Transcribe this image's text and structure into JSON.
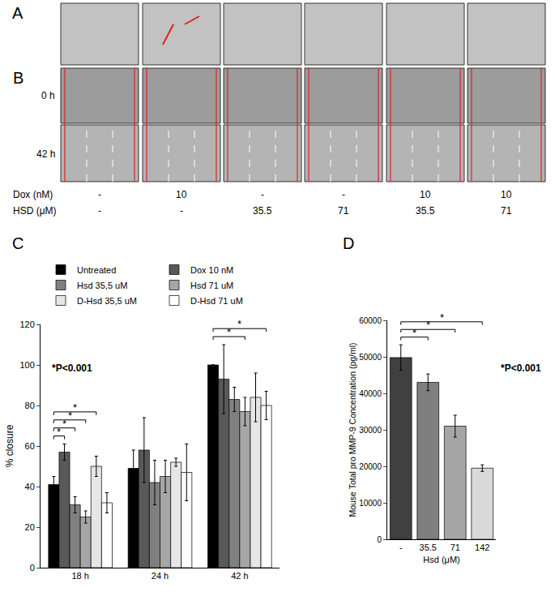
{
  "images": {
    "label_A": "A",
    "label_B": "B",
    "rows": [
      "0 h",
      "42 h"
    ],
    "conditions": [
      {
        "name": "Dox (nM)",
        "values": [
          "-",
          "10",
          "-",
          "-",
          "10",
          "10"
        ]
      },
      {
        "name": "HSD (μM)",
        "values": [
          "-",
          "-",
          "35.5",
          "71",
          "35.5",
          "71"
        ]
      }
    ]
  },
  "chart_data": [
    {
      "type": "bar",
      "panel_label": "C",
      "categories": [
        "18 h",
        "24 h",
        "42 h"
      ],
      "series": [
        {
          "name": "Untreated",
          "color": "#000000",
          "values": [
            41,
            49,
            100
          ],
          "errors": [
            4,
            9,
            0
          ]
        },
        {
          "name": "Dox 10 nM",
          "color": "#595959",
          "values": [
            57,
            58,
            93
          ],
          "errors": [
            4,
            16,
            17
          ]
        },
        {
          "name": "Hsd 35,5 uM",
          "color": "#808080",
          "values": [
            31,
            42,
            83
          ],
          "errors": [
            4,
            11,
            6
          ]
        },
        {
          "name": "Hsd 71 uM",
          "color": "#a6a6a6",
          "values": [
            25,
            45,
            77
          ],
          "errors": [
            3,
            8,
            7
          ]
        },
        {
          "name": "D-Hsd 35,5 uM",
          "color": "#e6e6e6",
          "values": [
            50,
            52,
            84
          ],
          "errors": [
            5,
            2,
            12
          ]
        },
        {
          "name": "D-Hsd 71 uM",
          "color": "#ffffff",
          "values": [
            32,
            47,
            80
          ],
          "errors": [
            5,
            14,
            7
          ]
        }
      ],
      "ylabel": "% closure",
      "ylim": [
        0,
        120
      ],
      "yticks": [
        0,
        20,
        40,
        60,
        80,
        100,
        120
      ],
      "grid": false,
      "legend": "top left",
      "annotations": [
        "*P<0.001"
      ],
      "comparisons": [
        {
          "category": "18 h",
          "from": "Untreated",
          "to": "Dox 10 nM",
          "label": "*"
        },
        {
          "category": "18 h",
          "from": "Untreated",
          "to": "Hsd 35,5 uM",
          "label": "*"
        },
        {
          "category": "18 h",
          "from": "Untreated",
          "to": "Hsd 71 uM",
          "label": "*"
        },
        {
          "category": "18 h",
          "from": "Untreated",
          "to": "D-Hsd 35,5 uM",
          "label": "*"
        },
        {
          "category": "42 h",
          "from": "Untreated",
          "to": "Hsd 71 uM",
          "label": "*"
        },
        {
          "category": "42 h",
          "from": "Untreated",
          "to": "D-Hsd 71 uM",
          "label": "*"
        }
      ]
    },
    {
      "type": "bar",
      "panel_label": "D",
      "categories": [
        "-",
        "35.5",
        "71",
        "142"
      ],
      "values": [
        49800,
        43000,
        31000,
        19500
      ],
      "errors": [
        3500,
        2300,
        3000,
        900
      ],
      "colors": [
        "#404040",
        "#7f7f7f",
        "#a6a6a6",
        "#d9d9d9"
      ],
      "xlabel": "Hsd (μM)",
      "ylabel": "Mouse Total pro MMP-9 Concentration (pg/ml)",
      "ylim": [
        0,
        60000
      ],
      "yticks": [
        0,
        10000,
        20000,
        30000,
        40000,
        50000,
        60000
      ],
      "grid": false,
      "annotations": [
        "*P<0.001"
      ],
      "comparisons": [
        {
          "category_from": "-",
          "category_to": "35.5",
          "label": "*"
        },
        {
          "category_from": "-",
          "category_to": "71",
          "label": "*"
        },
        {
          "category_from": "-",
          "category_to": "142",
          "label": "*"
        }
      ]
    }
  ]
}
